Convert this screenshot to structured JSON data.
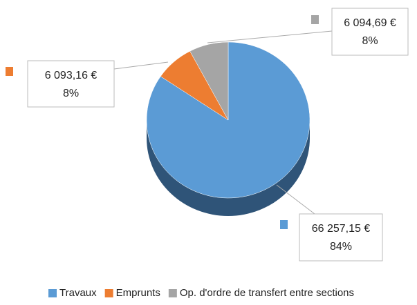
{
  "chart_data": {
    "type": "pie",
    "categories": [
      "Travaux",
      "Emprunts",
      "Op. d'ordre de transfert entre sections"
    ],
    "values": [
      66257.15,
      6093.16,
      6094.69
    ],
    "value_labels": [
      "66 257,15 €",
      "6 093,16 €",
      "6 094,69 €"
    ],
    "percents": [
      84,
      8,
      8
    ],
    "percent_labels": [
      "84%",
      "8%",
      "8%"
    ],
    "colors": [
      "#5b9bd5",
      "#ed7d31",
      "#a5a5a5"
    ],
    "side_colors": [
      "#2f5478",
      "#a4541d",
      "#6e6e6e"
    ],
    "legend": "bottom"
  }
}
